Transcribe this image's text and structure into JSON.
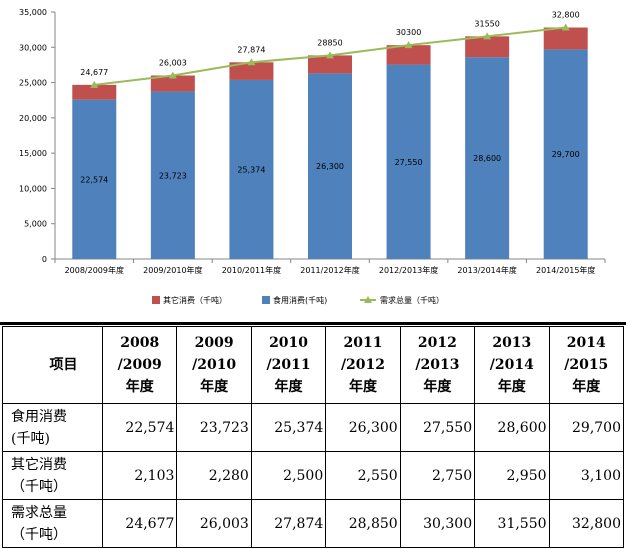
{
  "chart_data": {
    "type": "bar",
    "stacked": true,
    "categories": [
      "2008/2009年度",
      "2009/2010年度",
      "2010/2011年度",
      "2011/2012年度",
      "2012/2013年度",
      "2013/2014年度",
      "2014/2015年度"
    ],
    "series": [
      {
        "name": "食用消费(千吨)",
        "kind": "bar",
        "color": "#4f81bd",
        "values": [
          22574,
          23723,
          25374,
          26300,
          27550,
          28600,
          29700
        ],
        "labels": [
          "22,574",
          "23,723",
          "25,374",
          "26,300",
          "27,550",
          "28,600",
          "29,700"
        ]
      },
      {
        "name": "其它消费（千吨）",
        "kind": "bar",
        "color": "#c0504d",
        "values": [
          2103,
          2280,
          2500,
          2550,
          2750,
          2950,
          3100
        ]
      },
      {
        "name": "需求总量（千吨）",
        "kind": "line",
        "color": "#9bbb59",
        "values": [
          24677,
          26003,
          27874,
          28850,
          30300,
          31550,
          32800
        ],
        "labels": [
          "24,677",
          "26,003",
          "27,874",
          "28850",
          "30300",
          "31550",
          "32,800"
        ]
      }
    ],
    "ylim": [
      0,
      35000
    ],
    "yticks": [
      "0",
      "5,000",
      "10,000",
      "15,000",
      "20,000",
      "25,000",
      "30,000",
      "35,000"
    ],
    "ytick_values": [
      0,
      5000,
      10000,
      15000,
      20000,
      25000,
      30000,
      35000
    ],
    "grid": false,
    "legend_position": "bottom",
    "title": "",
    "xlabel": "",
    "ylabel": ""
  },
  "table": {
    "header_item": "项目",
    "columns": [
      [
        "2008",
        "/2009",
        "年度"
      ],
      [
        "2009",
        "/2010",
        "年度"
      ],
      [
        "2010",
        "/2011",
        "年度"
      ],
      [
        "2011",
        "/2012",
        "年度"
      ],
      [
        "2012",
        "/2013",
        "年度"
      ],
      [
        "2013",
        "/2014",
        "年度"
      ],
      [
        "2014",
        "/2015",
        "年度"
      ]
    ],
    "rows": [
      {
        "label": [
          "食用消费",
          "(千吨)"
        ],
        "values": [
          "22,574",
          "23,723",
          "25,374",
          "26,300",
          "27,550",
          "28,600",
          "29,700"
        ]
      },
      {
        "label": [
          "其它消费",
          "（千吨）"
        ],
        "values": [
          "2,103",
          "2,280",
          "2,500",
          "2,550",
          "2,750",
          "2,950",
          "3,100"
        ]
      },
      {
        "label": [
          "需求总量",
          "（千吨）"
        ],
        "values": [
          "24,677",
          "26,003",
          "27,874",
          "28,850",
          "30,300",
          "31,550",
          "32,800"
        ]
      }
    ]
  }
}
